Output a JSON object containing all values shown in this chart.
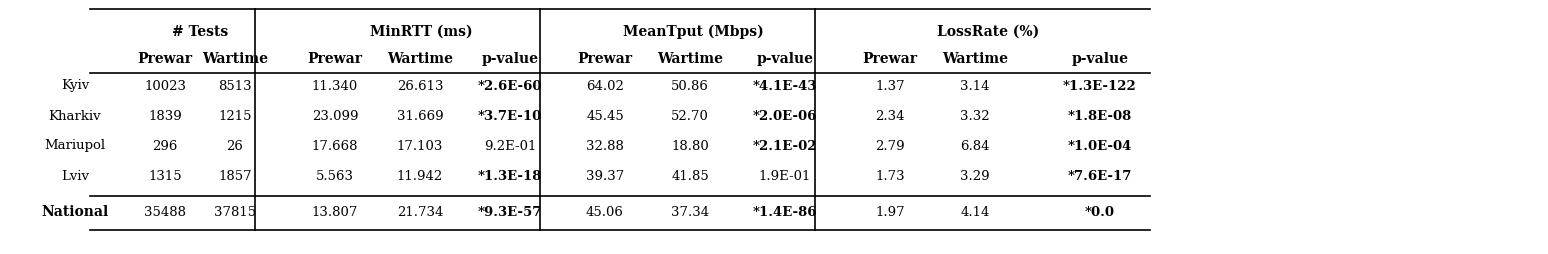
{
  "rows": [
    {
      "city": "Kyiv",
      "tests_pre": "10023",
      "tests_war": "8513",
      "rtt_pre": "11.340",
      "rtt_war": "26.613",
      "rtt_p": "*2.6E-60",
      "tput_pre": "64.02",
      "tput_war": "50.86",
      "tput_p": "*4.1E-43",
      "loss_pre": "1.37",
      "loss_war": "3.14",
      "loss_p": "*1.3E-122",
      "bold_city": false
    },
    {
      "city": "Kharkiv",
      "tests_pre": "1839",
      "tests_war": "1215",
      "rtt_pre": "23.099",
      "rtt_war": "31.669",
      "rtt_p": "*3.7E-10",
      "tput_pre": "45.45",
      "tput_war": "52.70",
      "tput_p": "*2.0E-06",
      "loss_pre": "2.34",
      "loss_war": "3.32",
      "loss_p": "*1.8E-08",
      "bold_city": false
    },
    {
      "city": "Mariupol",
      "tests_pre": "296",
      "tests_war": "26",
      "rtt_pre": "17.668",
      "rtt_war": "17.103",
      "rtt_p": "9.2E-01",
      "tput_pre": "32.88",
      "tput_war": "18.80",
      "tput_p": "*2.1E-02",
      "loss_pre": "2.79",
      "loss_war": "6.84",
      "loss_p": "*1.0E-04",
      "bold_city": false
    },
    {
      "city": "Lviv",
      "tests_pre": "1315",
      "tests_war": "1857",
      "rtt_pre": "5.563",
      "rtt_war": "11.942",
      "rtt_p": "*1.3E-18",
      "tput_pre": "39.37",
      "tput_war": "41.85",
      "tput_p": "1.9E-01",
      "loss_pre": "1.73",
      "loss_war": "3.29",
      "loss_p": "*7.6E-17",
      "bold_city": false
    },
    {
      "city": "National",
      "tests_pre": "35488",
      "tests_war": "37815",
      "rtt_pre": "13.807",
      "rtt_war": "21.734",
      "rtt_p": "*9.3E-57",
      "tput_pre": "45.06",
      "tput_war": "37.34",
      "tput_p": "*1.4E-86",
      "loss_pre": "1.97",
      "loss_war": "4.14",
      "loss_p": "*0.0",
      "bold_city": true
    }
  ],
  "col_headers": [
    "# Tests",
    "MinRTT (ms)",
    "MeanTput (Mbps)",
    "LossRate (%)"
  ],
  "sub_headers": [
    "Prewar",
    "Wartime",
    "p-value"
  ],
  "bg_color": "#ffffff",
  "header_color": "#000000",
  "font_size": 9.5,
  "header_font_size": 10
}
